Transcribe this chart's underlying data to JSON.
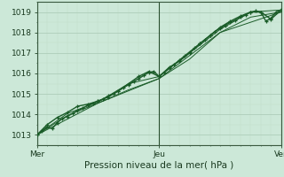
{
  "title": "",
  "xlabel": "Pression niveau de la mer( hPa )",
  "ylabel": "",
  "bg_color": "#cce8d8",
  "line_color": "#1a5c28",
  "ylim": [
    1012.5,
    1019.5
  ],
  "xlim": [
    0,
    48
  ],
  "yticks": [
    1013,
    1014,
    1015,
    1016,
    1017,
    1018,
    1019
  ],
  "xtick_positions": [
    0,
    24,
    48
  ],
  "xtick_labels": [
    "Mer",
    "Jeu",
    "Ven"
  ],
  "series1_x": [
    0,
    1,
    2,
    3,
    4,
    5,
    6,
    7,
    8,
    9,
    10,
    11,
    12,
    13,
    14,
    15,
    16,
    17,
    18,
    19,
    20,
    21,
    22,
    23,
    24,
    25,
    26,
    27,
    28,
    29,
    30,
    31,
    32,
    33,
    34,
    35,
    36,
    37,
    38,
    39,
    40,
    41,
    42,
    43,
    44,
    45,
    46,
    47,
    48
  ],
  "series1_y": [
    1013.0,
    1013.2,
    1013.4,
    1013.3,
    1013.6,
    1013.8,
    1013.9,
    1014.05,
    1014.2,
    1014.3,
    1014.45,
    1014.55,
    1014.65,
    1014.75,
    1014.9,
    1015.0,
    1015.15,
    1015.3,
    1015.45,
    1015.6,
    1015.75,
    1015.9,
    1016.05,
    1016.1,
    1015.85,
    1016.05,
    1016.25,
    1016.45,
    1016.65,
    1016.85,
    1017.05,
    1017.25,
    1017.45,
    1017.65,
    1017.85,
    1018.05,
    1018.2,
    1018.35,
    1018.5,
    1018.6,
    1018.75,
    1018.85,
    1019.0,
    1019.05,
    1019.0,
    1018.55,
    1018.7,
    1019.0,
    1019.1
  ],
  "series2_x": [
    0,
    2,
    4,
    6,
    8,
    10,
    12,
    14,
    16,
    18,
    20,
    22,
    24,
    26,
    28,
    30,
    32,
    34,
    36,
    38,
    40,
    42,
    44,
    46,
    48
  ],
  "series2_y": [
    1013.0,
    1013.5,
    1013.85,
    1014.1,
    1014.4,
    1014.5,
    1014.65,
    1014.85,
    1015.15,
    1015.5,
    1015.85,
    1016.1,
    1015.85,
    1016.3,
    1016.6,
    1017.0,
    1017.45,
    1017.85,
    1018.25,
    1018.55,
    1018.8,
    1019.0,
    1019.0,
    1018.65,
    1019.1
  ],
  "series3_x": [
    0,
    6,
    12,
    18,
    24,
    30,
    36,
    42,
    48
  ],
  "series3_y": [
    1013.0,
    1014.05,
    1014.6,
    1015.5,
    1015.85,
    1017.0,
    1018.15,
    1019.0,
    1019.1
  ],
  "series4_x": [
    0,
    6,
    12,
    18,
    24,
    30,
    36,
    42,
    48
  ],
  "series4_y": [
    1013.0,
    1013.95,
    1014.55,
    1015.2,
    1015.75,
    1016.7,
    1018.0,
    1018.75,
    1019.0
  ],
  "series5_x": [
    0,
    12,
    24,
    36,
    48
  ],
  "series5_y": [
    1013.0,
    1014.55,
    1015.75,
    1018.0,
    1019.0
  ],
  "marker": "+",
  "marker_size": 3.5,
  "linewidth_thin": 0.7,
  "linewidth_thick": 1.0,
  "tick_fontsize": 6.5,
  "xlabel_fontsize": 7.5
}
